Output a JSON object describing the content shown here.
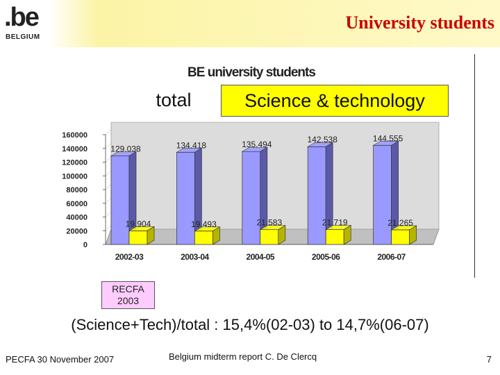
{
  "header": {
    "logo_text": ".be",
    "logo_sub": "BELGIUM",
    "title": "University students"
  },
  "chart_data": {
    "type": "bar",
    "title": "BE university students",
    "categories": [
      "2002-03",
      "2003-04",
      "2004-05",
      "2005-06",
      "2006-07"
    ],
    "series": [
      {
        "name": "total",
        "values": [
          129038,
          134418,
          135494,
          142538,
          144555
        ],
        "labels": [
          "129.038",
          "134.418",
          "135.494",
          "142.538",
          "144.555"
        ],
        "color": "#9999ff"
      },
      {
        "name": "Science & technology",
        "values": [
          19904,
          19493,
          21583,
          21719,
          21265
        ],
        "labels": [
          "19.904",
          "19.493",
          "21.583",
          "21.719",
          "21.265"
        ],
        "color": "#ffff00"
      }
    ],
    "ylim": [
      0,
      160000
    ],
    "yticks": [
      "0",
      "20000",
      "40000",
      "60000",
      "80000",
      "100000",
      "120000",
      "140000",
      "160000"
    ],
    "grid": false,
    "legend": "top"
  },
  "annotation": {
    "recfa_line1": "RECFA",
    "recfa_line2": "2003",
    "ratio_text": "(Science+Tech)/total : 15,4%(02-03) to 14,7%(06-07)"
  },
  "footer": {
    "left": "PECFA 30 November 2007",
    "middle": "Belgium midterm report C. De Clercq",
    "page": "7"
  },
  "colors": {
    "title": "#cc0000",
    "header_bg": "#fff9c8",
    "wall": "#dcdcdc",
    "recfa_bg": "#ffccff"
  }
}
